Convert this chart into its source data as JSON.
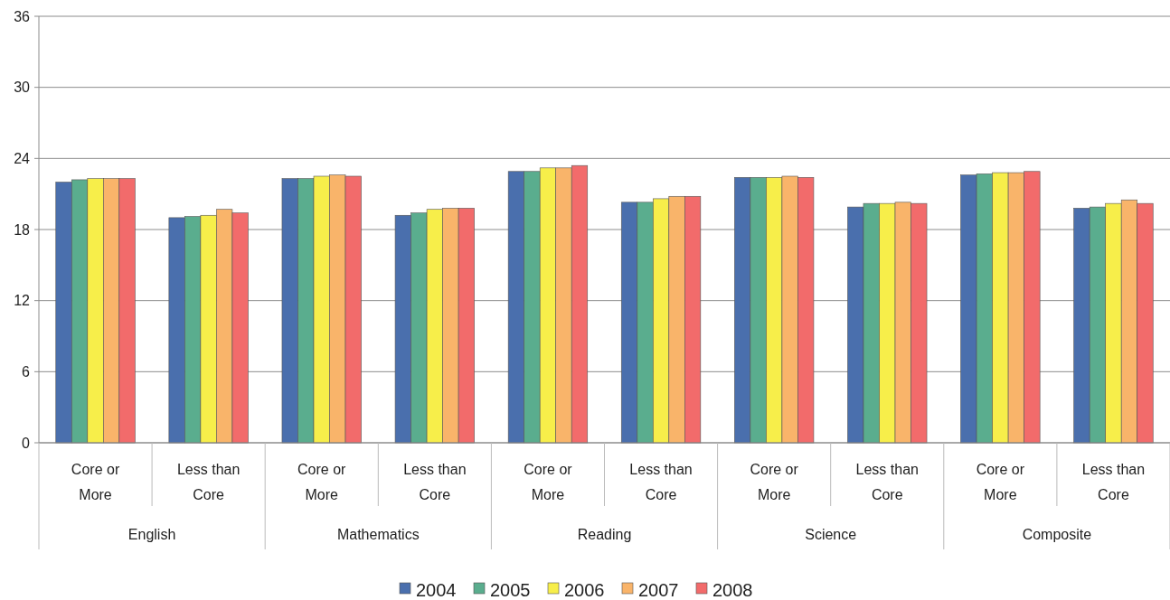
{
  "chart_data": {
    "type": "bar",
    "categories": [
      "Core or More",
      "Less than Core",
      "Core or More",
      "Less than Core",
      "Core or More",
      "Less than Core",
      "Core or More",
      "Less than Core",
      "Core or More",
      "Less than Core"
    ],
    "series": [
      {
        "name": "2004",
        "color": "#4a6fad",
        "values": [
          22.0,
          19.0,
          22.3,
          19.2,
          22.9,
          20.3,
          22.4,
          19.9,
          22.6,
          19.8
        ]
      },
      {
        "name": "2005",
        "color": "#5aad8e",
        "values": [
          22.2,
          19.1,
          22.3,
          19.4,
          22.9,
          20.3,
          22.4,
          20.2,
          22.7,
          19.9
        ]
      },
      {
        "name": "2006",
        "color": "#f7ee4a",
        "values": [
          22.3,
          19.2,
          22.5,
          19.7,
          23.2,
          20.6,
          22.4,
          20.2,
          22.8,
          20.2
        ]
      },
      {
        "name": "2007",
        "color": "#f9b46a",
        "values": [
          22.3,
          19.7,
          22.6,
          19.8,
          23.2,
          20.8,
          22.5,
          20.3,
          22.8,
          20.5
        ]
      },
      {
        "name": "2008",
        "color": "#f26b6b",
        "values": [
          22.3,
          19.4,
          22.5,
          19.8,
          23.4,
          20.8,
          22.4,
          20.2,
          22.9,
          20.2
        ]
      }
    ],
    "annotations": [
      "English",
      "Mathematics",
      "Reading",
      "Science",
      "Composite"
    ],
    "ylim": [
      0,
      36
    ],
    "yticks": [
      0,
      6,
      12,
      18,
      24,
      30,
      36
    ],
    "grid": "y",
    "legend": "bottom"
  }
}
